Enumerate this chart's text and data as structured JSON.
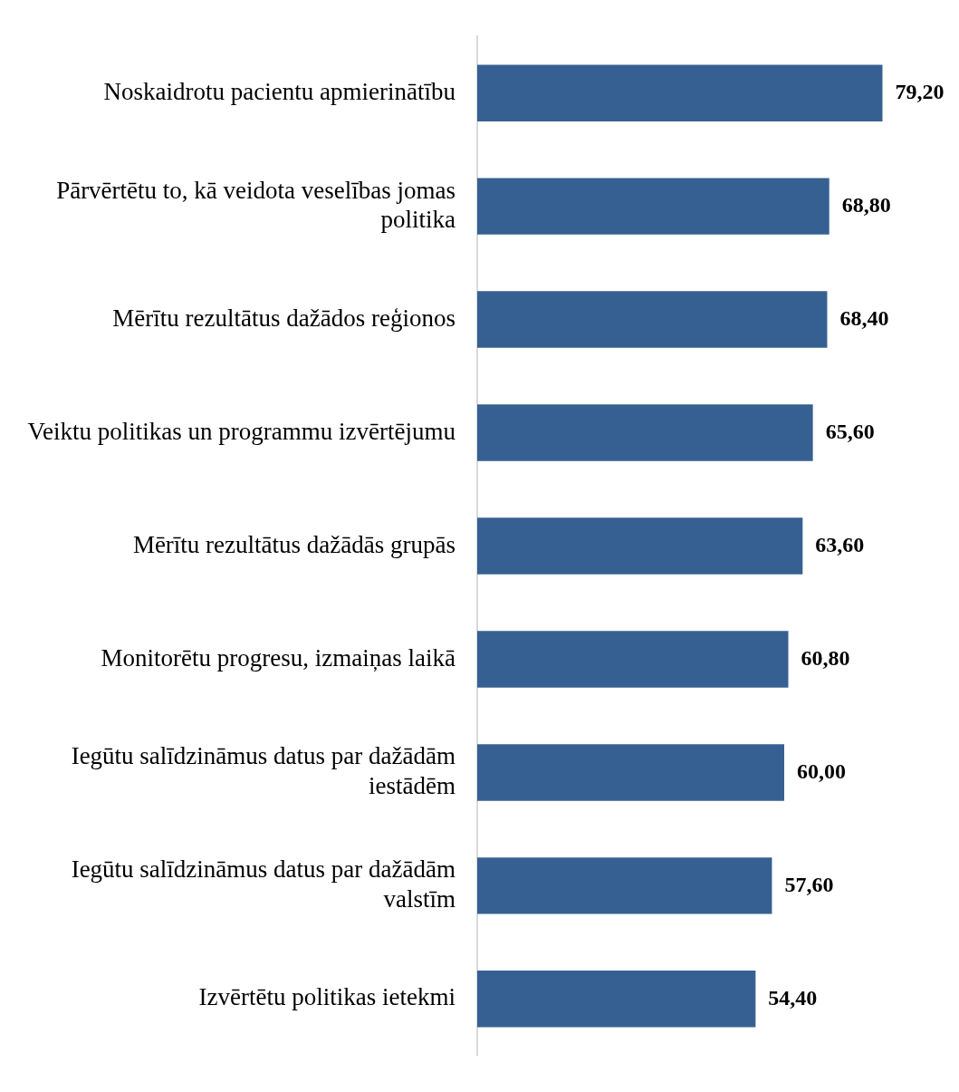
{
  "chart_data": {
    "type": "bar",
    "orientation": "horizontal",
    "categories": [
      "Noskaidrotu pacientu apmierinātību",
      "Pārvērtētu to, kā veidota veselības jomas politika",
      "Mērītu rezultātus dažādos reģionos",
      "Veiktu politikas un programmu izvērtējumu",
      "Mērītu rezultātus dažādās grupās",
      "Monitorētu progresu, izmaiņas laikā",
      "Iegūtu salīdzināmus datus par dažādām iestādēm",
      "Iegūtu salīdzināmus datus par dažādām valstīm",
      "Izvērtētu politikas ietekmi"
    ],
    "values": [
      79.2,
      68.8,
      68.4,
      65.6,
      63.6,
      60.8,
      60.0,
      57.6,
      54.4
    ],
    "value_labels": [
      "79,20",
      "68,80",
      "68,40",
      "65,60",
      "63,60",
      "60,80",
      "60,00",
      "57,60",
      "54,40"
    ],
    "color": "#376092",
    "legend": false
  }
}
